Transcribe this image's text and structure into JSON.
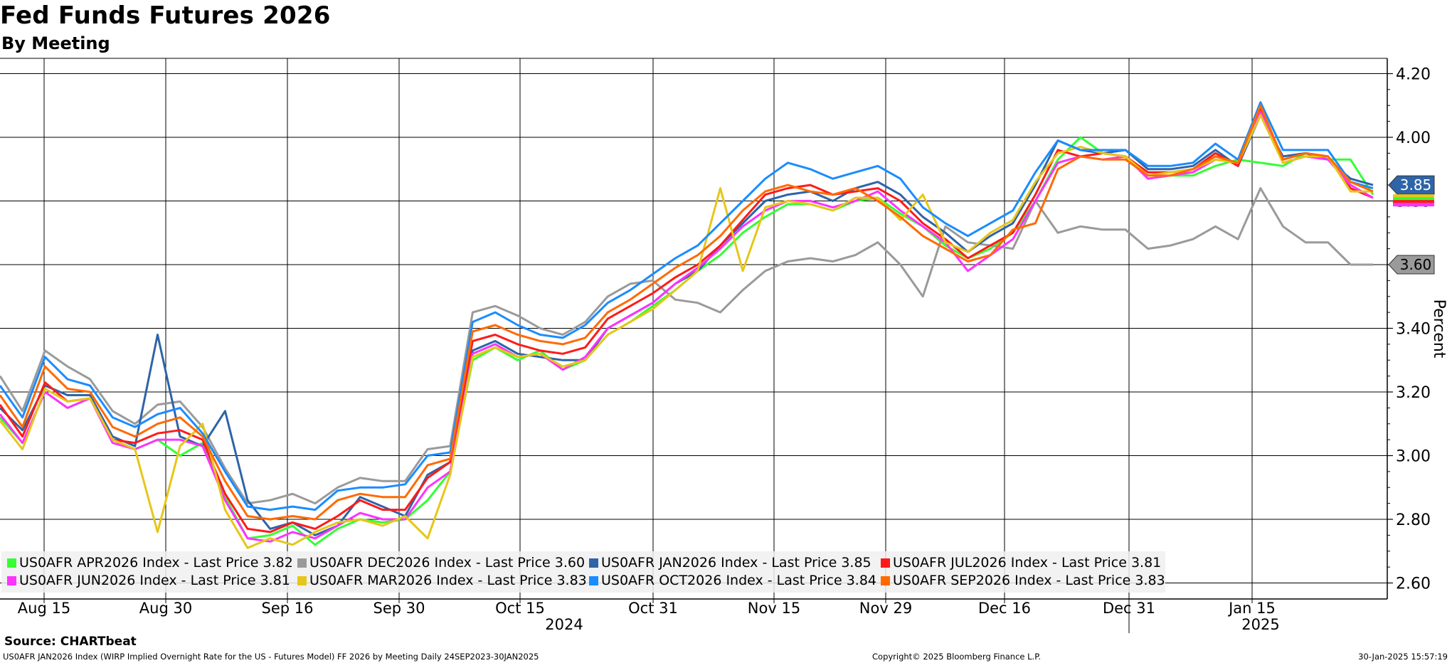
{
  "title": "Fed Funds Futures 2026",
  "subtitle": "By Meeting",
  "footer": {
    "source": "Source: CHARTbeat",
    "description": "US0AFR JAN2026 Index (WIRP Implied Overnight Rate for the US - Futures Model) FF 2026 by Meeting  Daily 24SEP2023-30JAN2025",
    "copyright": "Copyright© 2025 Bloomberg Finance L.P.",
    "timestamp": "30-Jan-2025 15:57:19"
  },
  "legend": [
    {
      "label": "US0AFR APR2026 Index - Last Price 3.82",
      "color": "#33ff33"
    },
    {
      "label": "US0AFR DEC2026 Index - Last Price 3.60",
      "color": "#9a9a9a"
    },
    {
      "label": "US0AFR JAN2026 Index - Last Price 3.85",
      "color": "#2e64a8"
    },
    {
      "label": "US0AFR JUL2026 Index - Last Price 3.81",
      "color": "#ff1a1a"
    },
    {
      "label": "US0AFR JUN2026 Index - Last Price 3.81",
      "color": "#ff33ff"
    },
    {
      "label": "US0AFR MAR2026 Index - Last Price 3.83",
      "color": "#e6c619"
    },
    {
      "label": "US0AFR OCT2026 Index - Last Price 3.84",
      "color": "#1a8cff"
    },
    {
      "label": "US0AFR SEP2026 Index - Last Price 3.83",
      "color": "#ff6a00"
    }
  ],
  "chart_data": {
    "type": "line",
    "title": "Fed Funds Futures 2026",
    "subtitle": "By Meeting",
    "ylabel": "Percent",
    "ylim": [
      2.56,
      4.25
    ],
    "yticks": [
      "4.20",
      "4.00",
      "3.80",
      "3.60",
      "3.40",
      "3.20",
      "3.00",
      "2.80",
      "2.60"
    ],
    "xtick_labels": [
      "Aug 15",
      "Aug 30",
      "Sep 16",
      "Sep 30",
      "Oct 15",
      "Oct 31",
      "Nov 15",
      "Nov 29",
      "Dec 16",
      "Dec 31",
      "Jan 15"
    ],
    "year_labels": [
      "2024",
      "2025"
    ],
    "grid": true,
    "last_value_tags": [
      {
        "text": "3.85",
        "value": 3.85,
        "color": "#2e64a8"
      },
      {
        "text": "3.60",
        "value": 3.6,
        "color": "#9a9a9a"
      }
    ],
    "x": [
      "Aug 6",
      "Aug 8",
      "Aug 12",
      "Aug 14",
      "Aug 15",
      "Aug 19",
      "Aug 21",
      "Aug 23",
      "Aug 27",
      "Aug 29",
      "Sep 3",
      "Sep 5",
      "Sep 9",
      "Sep 11",
      "Sep 13",
      "Sep 17",
      "Sep 19",
      "Sep 23",
      "Sep 25",
      "Sep 27",
      "Oct 1",
      "Oct 3",
      "Oct 7",
      "Oct 9",
      "Oct 11",
      "Oct 15",
      "Oct 17",
      "Oct 21",
      "Oct 23",
      "Oct 25",
      "Oct 29",
      "Oct 31",
      "Nov 4",
      "Nov 6",
      "Nov 8",
      "Nov 12",
      "Nov 14",
      "Nov 18",
      "Nov 20",
      "Nov 22",
      "Nov 26",
      "Nov 29",
      "Dec 3",
      "Dec 5",
      "Dec 9",
      "Dec 11",
      "Dec 13",
      "Dec 17",
      "Dec 19",
      "Dec 23",
      "Dec 27",
      "Dec 31",
      "Jan 3",
      "Jan 7",
      "Jan 9",
      "Jan 13",
      "Jan 15",
      "Jan 17",
      "Jan 21",
      "Jan 23",
      "Jan 27",
      "Jan 30"
    ],
    "series": [
      {
        "name": "US0AFR APR2026 Index",
        "color": "#33ff33",
        "values": [
          3.12,
          3.04,
          3.2,
          3.15,
          3.18,
          3.05,
          3.02,
          3.05,
          3.0,
          3.04,
          2.87,
          2.74,
          2.75,
          2.78,
          2.72,
          2.77,
          2.8,
          2.79,
          2.8,
          2.86,
          2.95,
          3.3,
          3.34,
          3.3,
          3.33,
          3.27,
          3.3,
          3.38,
          3.42,
          3.47,
          3.52,
          3.58,
          3.63,
          3.7,
          3.75,
          3.79,
          3.79,
          3.77,
          3.8,
          3.81,
          3.76,
          3.72,
          3.66,
          3.62,
          3.65,
          3.7,
          3.8,
          3.93,
          4.0,
          3.95,
          3.94,
          3.87,
          3.88,
          3.88,
          3.91,
          3.93,
          3.92,
          3.91,
          3.95,
          3.93,
          3.93,
          3.82
        ]
      },
      {
        "name": "US0AFR DEC2026 Index",
        "color": "#9a9a9a",
        "values": [
          3.25,
          3.14,
          3.33,
          3.28,
          3.24,
          3.14,
          3.1,
          3.16,
          3.17,
          3.09,
          2.96,
          2.85,
          2.86,
          2.88,
          2.85,
          2.9,
          2.93,
          2.92,
          2.92,
          3.02,
          3.03,
          3.45,
          3.47,
          3.44,
          3.4,
          3.38,
          3.42,
          3.5,
          3.54,
          3.55,
          3.49,
          3.48,
          3.45,
          3.52,
          3.58,
          3.61,
          3.62,
          3.61,
          3.63,
          3.67,
          3.6,
          3.5,
          3.72,
          3.67,
          3.66,
          3.65,
          3.8,
          3.7,
          3.72,
          3.71,
          3.71,
          3.65,
          3.66,
          3.68,
          3.72,
          3.68,
          3.84,
          3.72,
          3.67,
          3.67,
          3.6,
          3.6
        ]
      },
      {
        "name": "US0AFR JAN2026 Index",
        "color": "#2e64a8",
        "values": [
          3.15,
          3.08,
          3.22,
          3.19,
          3.19,
          3.06,
          3.03,
          3.38,
          3.06,
          3.03,
          3.14,
          2.86,
          2.77,
          2.79,
          2.75,
          2.78,
          2.87,
          2.84,
          2.81,
          2.94,
          2.98,
          3.33,
          3.36,
          3.32,
          3.31,
          3.3,
          3.3,
          3.4,
          3.44,
          3.48,
          3.54,
          3.58,
          3.66,
          3.73,
          3.8,
          3.82,
          3.83,
          3.8,
          3.84,
          3.86,
          3.82,
          3.75,
          3.7,
          3.64,
          3.69,
          3.73,
          3.85,
          3.99,
          3.96,
          3.95,
          3.96,
          3.9,
          3.9,
          3.91,
          3.96,
          3.91,
          4.07,
          3.94,
          3.95,
          3.93,
          3.87,
          3.85
        ]
      },
      {
        "name": "US0AFR JUL2026 Index",
        "color": "#ff1a1a",
        "values": [
          3.16,
          3.06,
          3.23,
          3.17,
          3.18,
          3.05,
          3.04,
          3.07,
          3.08,
          3.05,
          2.88,
          2.77,
          2.76,
          2.79,
          2.77,
          2.81,
          2.86,
          2.83,
          2.83,
          2.93,
          2.98,
          3.36,
          3.38,
          3.35,
          3.33,
          3.32,
          3.34,
          3.43,
          3.47,
          3.51,
          3.56,
          3.6,
          3.66,
          3.74,
          3.82,
          3.84,
          3.85,
          3.82,
          3.83,
          3.84,
          3.8,
          3.73,
          3.68,
          3.62,
          3.66,
          3.7,
          3.82,
          3.96,
          3.94,
          3.95,
          3.94,
          3.89,
          3.89,
          3.9,
          3.95,
          3.91,
          4.09,
          3.93,
          3.95,
          3.94,
          3.84,
          3.81
        ]
      },
      {
        "name": "US0AFR JUN2026 Index",
        "color": "#ff33ff",
        "values": [
          3.13,
          3.04,
          3.2,
          3.15,
          3.18,
          3.04,
          3.02,
          3.05,
          3.05,
          3.03,
          2.86,
          2.74,
          2.73,
          2.76,
          2.74,
          2.78,
          2.82,
          2.8,
          2.8,
          2.9,
          2.95,
          3.32,
          3.35,
          3.31,
          3.32,
          3.27,
          3.31,
          3.4,
          3.44,
          3.48,
          3.54,
          3.59,
          3.65,
          3.72,
          3.77,
          3.8,
          3.8,
          3.78,
          3.8,
          3.83,
          3.77,
          3.72,
          3.67,
          3.58,
          3.63,
          3.68,
          3.8,
          3.92,
          3.94,
          3.93,
          3.94,
          3.87,
          3.88,
          3.89,
          3.93,
          3.92,
          4.08,
          3.92,
          3.94,
          3.93,
          3.85,
          3.81
        ]
      },
      {
        "name": "US0AFR MAR2026 Index",
        "color": "#e6c619",
        "values": [
          3.11,
          3.02,
          3.21,
          3.17,
          3.18,
          3.05,
          3.02,
          2.76,
          3.03,
          3.1,
          2.83,
          2.71,
          2.74,
          2.72,
          2.76,
          2.79,
          2.8,
          2.78,
          2.81,
          2.74,
          2.94,
          3.31,
          3.34,
          3.31,
          3.32,
          3.28,
          3.3,
          3.38,
          3.42,
          3.46,
          3.52,
          3.58,
          3.84,
          3.58,
          3.78,
          3.8,
          3.79,
          3.77,
          3.81,
          3.81,
          3.74,
          3.82,
          3.67,
          3.64,
          3.7,
          3.74,
          3.86,
          3.95,
          3.97,
          3.95,
          3.94,
          3.88,
          3.89,
          3.9,
          3.93,
          3.92,
          4.07,
          3.92,
          3.94,
          3.94,
          3.83,
          3.83
        ]
      },
      {
        "name": "US0AFR OCT2026 Index",
        "color": "#1a8cff",
        "values": [
          3.22,
          3.12,
          3.31,
          3.24,
          3.22,
          3.12,
          3.09,
          3.13,
          3.15,
          3.07,
          2.95,
          2.84,
          2.83,
          2.84,
          2.83,
          2.89,
          2.9,
          2.9,
          2.91,
          3.0,
          3.01,
          3.42,
          3.45,
          3.41,
          3.38,
          3.37,
          3.41,
          3.48,
          3.52,
          3.57,
          3.62,
          3.66,
          3.73,
          3.8,
          3.87,
          3.92,
          3.9,
          3.87,
          3.89,
          3.91,
          3.87,
          3.78,
          3.73,
          3.69,
          3.73,
          3.77,
          3.89,
          3.99,
          3.96,
          3.96,
          3.96,
          3.91,
          3.91,
          3.92,
          3.98,
          3.93,
          4.11,
          3.96,
          3.96,
          3.96,
          3.86,
          3.84
        ]
      },
      {
        "name": "US0AFR SEP2026 Index",
        "color": "#ff6a00",
        "values": [
          3.19,
          3.09,
          3.28,
          3.21,
          3.2,
          3.09,
          3.06,
          3.1,
          3.12,
          3.06,
          2.92,
          2.81,
          2.8,
          2.81,
          2.8,
          2.86,
          2.88,
          2.87,
          2.87,
          2.97,
          2.99,
          3.39,
          3.41,
          3.38,
          3.36,
          3.35,
          3.37,
          3.45,
          3.49,
          3.54,
          3.59,
          3.63,
          3.69,
          3.77,
          3.83,
          3.85,
          3.83,
          3.82,
          3.84,
          3.8,
          3.75,
          3.69,
          3.65,
          3.61,
          3.63,
          3.71,
          3.73,
          3.9,
          3.94,
          3.93,
          3.93,
          3.88,
          3.88,
          3.9,
          3.94,
          3.92,
          4.1,
          3.93,
          3.95,
          3.94,
          3.86,
          3.83
        ]
      }
    ]
  }
}
